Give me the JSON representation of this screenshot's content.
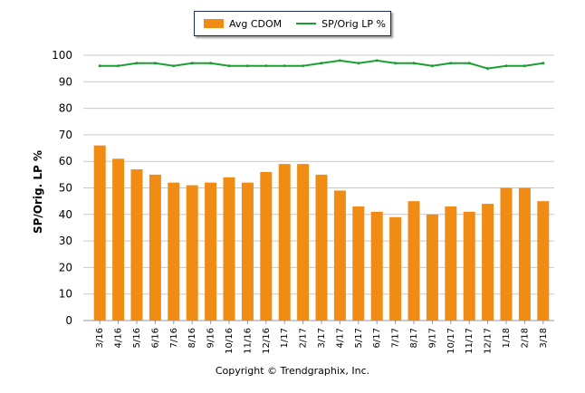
{
  "chart_data": {
    "type": "bar",
    "title": "",
    "xlabel": "",
    "ylabel": "SP/Orig. LP %",
    "ylim": [
      0,
      100
    ],
    "yticks": [
      0,
      10,
      20,
      30,
      40,
      50,
      60,
      70,
      80,
      90,
      100
    ],
    "grid": true,
    "legend": "top",
    "categories": [
      "3/16",
      "4/16",
      "5/16",
      "6/16",
      "7/16",
      "8/16",
      "9/16",
      "10/16",
      "11/16",
      "12/16",
      "1/17",
      "2/17",
      "3/17",
      "4/17",
      "5/17",
      "6/17",
      "7/17",
      "8/17",
      "9/17",
      "10/17",
      "11/17",
      "12/17",
      "1/18",
      "2/18",
      "3/18"
    ],
    "series": [
      {
        "name": "Avg CDOM",
        "type": "bar",
        "color": "#f08c14",
        "values": [
          66,
          61,
          57,
          55,
          52,
          51,
          52,
          54,
          52,
          56,
          59,
          59,
          55,
          49,
          43,
          41,
          39,
          45,
          40,
          43,
          41,
          44,
          50,
          50,
          45
        ]
      },
      {
        "name": "SP/Orig LP %",
        "type": "line",
        "color": "#19a030",
        "values": [
          96,
          96,
          97,
          97,
          96,
          97,
          97,
          96,
          96,
          96,
          96,
          96,
          97,
          98,
          97,
          98,
          97,
          97,
          96,
          97,
          97,
          95,
          96,
          96,
          97
        ]
      }
    ]
  },
  "footer": {
    "copyright": "Copyright © Trendgraphix, Inc."
  }
}
